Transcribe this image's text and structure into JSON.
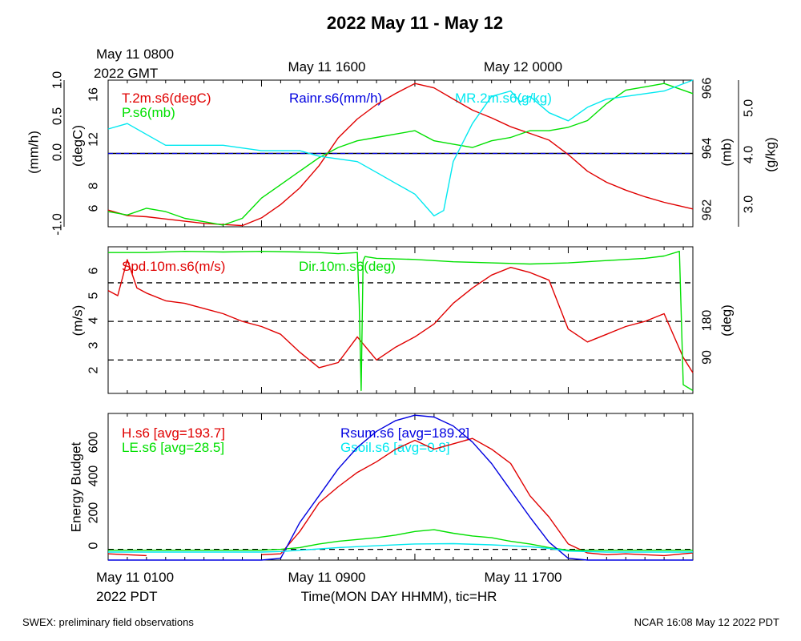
{
  "title": "2022 May 11 - May 12",
  "top_axis": {
    "gmt_first_date": "May 11 0800",
    "gmt_first_year": "2022 GMT",
    "gmt_labels": [
      "May 11 1600",
      "May 12 0000"
    ]
  },
  "bottom_axis": {
    "pdt_first_date": "May 11 0100",
    "pdt_first_year": "2022 PDT",
    "pdt_labels": [
      "May 11 0900",
      "May 11 1700"
    ],
    "xlabel": "Time(MON DAY HHMM), tic=HR"
  },
  "footer": {
    "left": "SWEX: preliminary field observations",
    "right": "NCAR 16:08 May 12 2022 PDT"
  },
  "colors": {
    "red": "#e00000",
    "green": "#00e000",
    "blue": "#0000e0",
    "cyan": "#00e8f0",
    "black": "#000000"
  },
  "chart_data": [
    {
      "type": "line",
      "panel": "met",
      "x_unit": "hours since May 11 0100 PDT",
      "xlim": [
        0,
        30.5
      ],
      "axes": {
        "rain": {
          "label": "(mm/h)",
          "ylim": [
            -1.0,
            1.0
          ],
          "ticks": [
            "1.0",
            "0.5",
            "0.0",
            "-1.0"
          ]
        },
        "temp": {
          "label": "(degC)",
          "ylim": [
            4.5,
            17.7
          ],
          "ticks": [
            "16",
            "12",
            "8",
            "6"
          ]
        },
        "pres": {
          "label": "(mb)",
          "ylim": [
            961.75,
            966.1
          ],
          "ticks": [
            "966",
            "964",
            "962"
          ]
        },
        "mr": {
          "label": "(g/kg)",
          "ylim": [
            2.9,
            5.6
          ],
          "ticks": [
            "5.0",
            "4.0",
            "3.0"
          ]
        }
      },
      "series": [
        {
          "name": "T.2m.s6(degC)",
          "color": "red",
          "axis": "temp",
          "x": [
            0,
            1,
            2,
            3,
            4,
            5,
            6,
            7,
            8,
            9,
            10,
            11,
            12,
            13,
            14,
            15,
            16,
            17,
            18,
            19,
            20,
            21,
            22,
            23,
            24,
            25,
            26,
            27,
            28,
            29,
            30.5
          ],
          "y": [
            6.0,
            5.5,
            5.4,
            5.2,
            5.0,
            4.8,
            4.7,
            4.6,
            5.3,
            6.5,
            8.0,
            10.0,
            12.5,
            14.2,
            15.5,
            16.5,
            17.4,
            17.0,
            16.0,
            15.0,
            14.3,
            13.5,
            12.9,
            12.3,
            11.0,
            9.5,
            8.5,
            7.8,
            7.2,
            6.7,
            6.1
          ]
        },
        {
          "name": "P.s6(mb)",
          "color": "green",
          "axis": "pres",
          "x": [
            0,
            1,
            2,
            3,
            4,
            5,
            6,
            7,
            8,
            9,
            10,
            11,
            12,
            13,
            14,
            15,
            16,
            17,
            18,
            19,
            20,
            21,
            22,
            23,
            24,
            25,
            26,
            27,
            28,
            29,
            30.5
          ],
          "y": [
            962.2,
            962.1,
            962.3,
            962.2,
            962.0,
            961.9,
            961.8,
            962.0,
            962.6,
            963.0,
            963.4,
            963.8,
            964.1,
            964.3,
            964.4,
            964.5,
            964.6,
            964.3,
            964.2,
            964.1,
            964.3,
            964.4,
            964.6,
            964.6,
            964.7,
            964.9,
            965.4,
            965.8,
            965.9,
            966.0,
            965.7
          ]
        },
        {
          "name": "Rainr.s6(mm/h)",
          "color": "blue",
          "axis": "rain",
          "x": [
            0,
            30.5
          ],
          "y": [
            0.0,
            0.0
          ]
        },
        {
          "name": "MR.2m.s6(g/kg)",
          "color": "cyan",
          "axis": "mr",
          "x": [
            0,
            1,
            2,
            3,
            4,
            5,
            6,
            7,
            8,
            9,
            10,
            11,
            12,
            13,
            14,
            15,
            16,
            17,
            17.5,
            18,
            19,
            20,
            21,
            21.5,
            22,
            23,
            24,
            25,
            26,
            27,
            28,
            29,
            30.5
          ],
          "y": [
            4.7,
            4.8,
            4.6,
            4.4,
            4.4,
            4.4,
            4.4,
            4.35,
            4.3,
            4.3,
            4.3,
            4.2,
            4.15,
            4.1,
            3.9,
            3.7,
            3.5,
            3.1,
            3.2,
            4.1,
            4.8,
            5.3,
            5.4,
            5.2,
            5.3,
            5.0,
            4.85,
            5.1,
            5.25,
            5.3,
            5.35,
            5.4,
            5.6
          ]
        }
      ],
      "reference_lines": [
        {
          "axis": "rain",
          "y": 0.0,
          "style": "dashed"
        }
      ]
    },
    {
      "type": "line",
      "panel": "wind",
      "x_unit": "hours since May 11 0100 PDT",
      "xlim": [
        0,
        30.5
      ],
      "axes": {
        "spd": {
          "label": "(m/s)",
          "ylim": [
            1.2,
            6.9
          ],
          "ticks": [
            "6",
            "5",
            "4",
            "3",
            "2"
          ]
        },
        "dir": {
          "label": "(deg)",
          "ylim": [
            45,
            300
          ],
          "ticks": [
            "180",
            "90"
          ]
        }
      },
      "series": [
        {
          "name": "Spd.10m.s6(m/s)",
          "color": "red",
          "axis": "spd",
          "x": [
            0,
            0.5,
            1,
            1.5,
            2,
            3,
            4,
            5,
            6,
            7,
            8,
            9,
            10,
            11,
            12,
            13,
            14,
            15,
            16,
            17,
            18,
            19,
            20,
            21,
            22,
            23,
            24,
            25,
            26,
            27,
            28,
            29,
            30,
            30.5
          ],
          "y": [
            5.2,
            5.0,
            6.4,
            5.3,
            5.1,
            4.8,
            4.7,
            4.5,
            4.3,
            4.0,
            3.8,
            3.5,
            2.8,
            2.2,
            2.4,
            3.4,
            2.5,
            3.0,
            3.4,
            3.9,
            4.7,
            5.3,
            5.8,
            6.1,
            5.9,
            5.6,
            3.7,
            3.2,
            3.5,
            3.8,
            4.0,
            4.3,
            2.6,
            2.0
          ]
        },
        {
          "name": "Dir.10m.s6(deg)",
          "color": "green",
          "axis": "dir",
          "x": [
            0,
            2,
            4,
            6,
            8,
            10,
            11,
            12,
            13,
            13.1,
            13.2,
            13.3,
            13.4,
            14,
            16,
            18,
            20,
            22,
            24,
            26,
            28,
            29,
            29.8,
            30,
            30.5
          ],
          "y": [
            290,
            290,
            292,
            291,
            292,
            291,
            290,
            288,
            290,
            200,
            50,
            275,
            283,
            280,
            278,
            274,
            272,
            270,
            272,
            276,
            280,
            284,
            292,
            60,
            50
          ]
        }
      ],
      "reference_lines": [
        {
          "axis": "spd",
          "y": 5.5,
          "style": "dashed"
        },
        {
          "axis": "spd",
          "y": 4.0,
          "style": "dashed"
        },
        {
          "axis": "spd",
          "y": 2.5,
          "style": "dashed"
        }
      ]
    },
    {
      "type": "line",
      "panel": "energy",
      "x_unit": "hours since May 11 0100 PDT",
      "xlim": [
        0,
        30.5
      ],
      "ylabel": "Energy Budget",
      "ylim": [
        -60,
        760
      ],
      "ticks": [
        "600",
        "400",
        "200",
        "0"
      ],
      "series": [
        {
          "name": "H.s6 [avg=193.7]",
          "color": "red",
          "x": [
            0,
            1,
            2,
            3,
            8,
            9,
            10,
            11,
            12,
            13,
            14,
            15,
            16,
            17,
            18,
            19,
            20,
            21,
            22,
            23,
            24,
            25,
            26,
            27,
            28,
            29,
            30,
            30.5
          ],
          "y": [
            -25,
            -30,
            -35,
            null,
            -30,
            -25,
            100,
            260,
            350,
            430,
            490,
            560,
            610,
            560,
            590,
            620,
            560,
            480,
            300,
            180,
            30,
            -20,
            -30,
            -25,
            -30,
            -35,
            -25,
            -20
          ]
        },
        {
          "name": "LE.s6 [avg=28.5]",
          "color": "green",
          "x": [
            0,
            2,
            4,
            6,
            8,
            9,
            10,
            11,
            12,
            13,
            14,
            15,
            16,
            17,
            18,
            19,
            20,
            21,
            22,
            23,
            24,
            25,
            26,
            28,
            30.5
          ],
          "y": [
            -5,
            -5,
            -5,
            -5,
            -5,
            0,
            10,
            30,
            45,
            55,
            65,
            80,
            100,
            110,
            90,
            75,
            65,
            45,
            30,
            10,
            -5,
            -5,
            -5,
            -5,
            -5
          ]
        },
        {
          "name": "Rsum.s6 [avg=189.2]",
          "color": "blue",
          "x": [
            0,
            2,
            4,
            6,
            8,
            9,
            10,
            11,
            12,
            13,
            14,
            15,
            16,
            17,
            18,
            19,
            20,
            21,
            22,
            23,
            24,
            25,
            26,
            28,
            30.5
          ],
          "y": [
            -60,
            -60,
            -60,
            -60,
            -60,
            -50,
            150,
            300,
            450,
            570,
            660,
            720,
            750,
            740,
            690,
            600,
            480,
            330,
            180,
            40,
            -50,
            -60,
            -60,
            -60,
            -60
          ]
        },
        {
          "name": "Gsoil.s6 [avg=0.8]",
          "color": "cyan",
          "x": [
            0,
            2,
            4,
            6,
            8,
            9,
            10,
            12,
            14,
            16,
            18,
            20,
            22,
            23,
            24,
            26,
            28,
            30.5
          ],
          "y": [
            -15,
            -15,
            -15,
            -15,
            -15,
            -12,
            -5,
            10,
            20,
            30,
            32,
            25,
            15,
            5,
            -10,
            -15,
            -15,
            -15
          ]
        }
      ],
      "reference_lines": [
        {
          "y": 0,
          "style": "dashed"
        }
      ]
    }
  ]
}
